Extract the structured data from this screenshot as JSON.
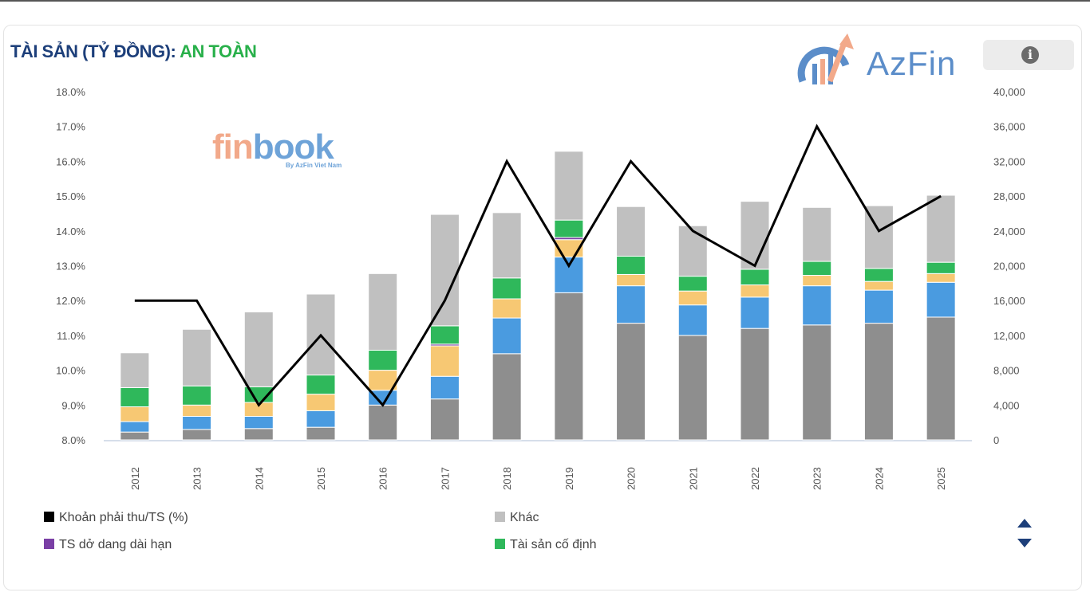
{
  "header": {
    "title_part1": "TÀI SẢN (TỶ ĐỒNG): ",
    "title_part2": "AN TOÀN",
    "info_icon_glyph": "i"
  },
  "brand": {
    "azfin_text": "AzFin",
    "finbook_a": "fin",
    "finbook_b": "book",
    "finbook_sub": "By AzFin Viet Nam"
  },
  "colors": {
    "khac": "#c0c0c0",
    "fixed_assets": "#2fb85b",
    "long_term_wip": "#7a3fa5",
    "receivables_ratio": "#000000",
    "other_series_1": "#f7c873",
    "other_series_2": "#4a9be0",
    "other_series_3": "#8e8e8e",
    "accent_green": "#28b04a",
    "accent_navy": "#1d3f7a"
  },
  "legend": [
    {
      "label": "Khoản phải thu/TS (%)",
      "color": "#000000"
    },
    {
      "label": "Khác",
      "color": "#c0c0c0"
    },
    {
      "label": "TS dở dang dài hạn",
      "color": "#7a3fa5"
    },
    {
      "label": "Tài sản cố định",
      "color": "#2fb85b"
    }
  ],
  "chart_data": {
    "type": "bar",
    "categories": [
      "2012",
      "2013",
      "2014",
      "2015",
      "2016",
      "2017",
      "2018",
      "2019",
      "2020",
      "2021",
      "2022",
      "2023",
      "2024",
      "2025"
    ],
    "y_left_ticks": [
      "8.0%",
      "9.0%",
      "10.0%",
      "11.0%",
      "12.0%",
      "13.0%",
      "14.0%",
      "15.0%",
      "16.0%",
      "17.0%",
      "18.0%"
    ],
    "y_right_ticks": [
      "0",
      "4,000",
      "8,000",
      "12,000",
      "16,000",
      "20,000",
      "24,000",
      "28,000",
      "32,000",
      "36,000",
      "40,000"
    ],
    "ylim_left": [
      8,
      18
    ],
    "ylim_right": [
      0,
      40000
    ],
    "grid": false,
    "stacked": true,
    "series": [
      {
        "name": "",
        "color": "#8e8e8e",
        "values": [
          900,
          1200,
          1300,
          1450,
          4000,
          4700,
          9900,
          16900,
          13400,
          12000,
          12800,
          13200,
          13400,
          14100
        ]
      },
      {
        "name": "",
        "color": "#4a9be0",
        "values": [
          1200,
          1500,
          1400,
          1900,
          1700,
          2600,
          4100,
          4100,
          4300,
          3500,
          3600,
          4500,
          3800,
          4000
        ]
      },
      {
        "name": "",
        "color": "#f7c873",
        "values": [
          1700,
          1300,
          1600,
          1900,
          2300,
          3500,
          2200,
          2000,
          1300,
          1600,
          1400,
          1200,
          1000,
          1000
        ]
      },
      {
        "name": "TS dở dang dài hạn",
        "color": "#7a3fa5",
        "values": [
          0,
          0,
          0,
          0,
          0,
          200,
          0,
          250,
          0,
          0,
          0,
          0,
          0,
          0
        ]
      },
      {
        "name": "Tài sản cố định",
        "color": "#2fb85b",
        "values": [
          2200,
          2200,
          1800,
          2200,
          2300,
          2100,
          2400,
          2000,
          2100,
          1700,
          1800,
          1600,
          1500,
          1300
        ]
      },
      {
        "name": "Khác",
        "color": "#c0c0c0",
        "values": [
          4000,
          6500,
          8600,
          9300,
          8800,
          12800,
          7500,
          7900,
          5700,
          5800,
          7800,
          6200,
          7200,
          7700
        ]
      }
    ],
    "line": {
      "name": "Khoản phải thu/TS (%)",
      "color": "#000000",
      "axis": "left",
      "values": [
        12.0,
        12.0,
        9.0,
        11.0,
        9.0,
        12.0,
        16.0,
        13.0,
        16.0,
        14.0,
        13.0,
        17.0,
        14.0,
        15.0
      ]
    }
  }
}
